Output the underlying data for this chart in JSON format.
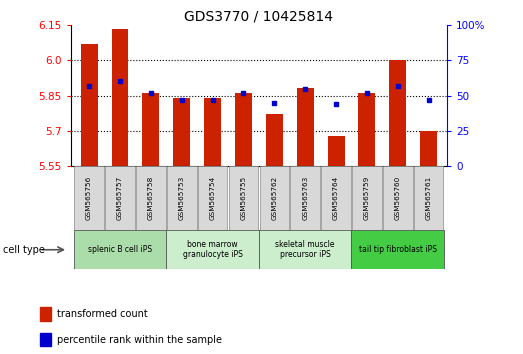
{
  "title": "GDS3770 / 10425814",
  "samples": [
    "GSM565756",
    "GSM565757",
    "GSM565758",
    "GSM565753",
    "GSM565754",
    "GSM565755",
    "GSM565762",
    "GSM565763",
    "GSM565764",
    "GSM565759",
    "GSM565760",
    "GSM565761"
  ],
  "transformed_counts": [
    6.07,
    6.13,
    5.86,
    5.84,
    5.84,
    5.86,
    5.77,
    5.88,
    5.68,
    5.86,
    6.0,
    5.7
  ],
  "percentile_ranks": [
    57,
    60,
    52,
    47,
    47,
    52,
    45,
    55,
    44,
    52,
    57,
    47
  ],
  "cell_types": [
    {
      "label": "splenic B cell iPS",
      "start": 0,
      "end": 3,
      "color": "#aaddaa"
    },
    {
      "label": "bone marrow\ngranulocyte iPS",
      "start": 3,
      "end": 6,
      "color": "#cceecc"
    },
    {
      "label": "skeletal muscle\nprecursor iPS",
      "start": 6,
      "end": 9,
      "color": "#cceecc"
    },
    {
      "label": "tail tip fibroblast iPS",
      "start": 9,
      "end": 12,
      "color": "#44cc44"
    }
  ],
  "ylim_left": [
    5.55,
    6.15
  ],
  "ylim_right": [
    0,
    100
  ],
  "yticks_left": [
    5.55,
    5.7,
    5.85,
    6.0,
    6.15
  ],
  "yticks_right": [
    0,
    25,
    50,
    75,
    100
  ],
  "bar_color": "#cc2200",
  "dot_color": "#0000cc",
  "bar_bottom": 5.55,
  "title_fontsize": 10,
  "tick_fontsize": 7.5,
  "legend1": "transformed count",
  "legend2": "percentile rank within the sample"
}
